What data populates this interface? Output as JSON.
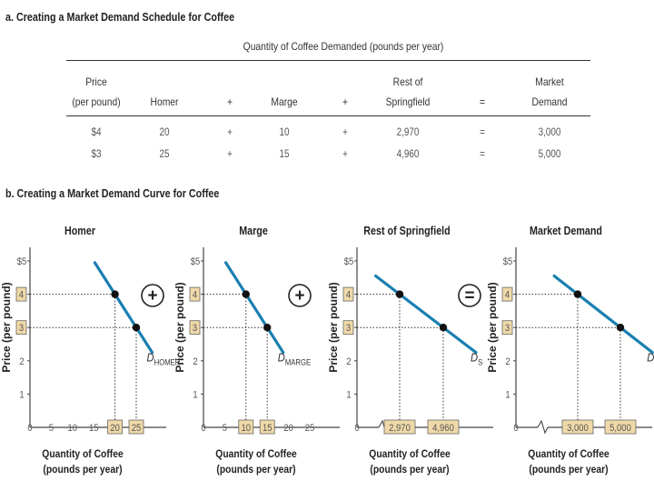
{
  "section_a": {
    "title": "a. Creating a Market Demand Schedule for Coffee",
    "table_caption": "Quantity of Coffee Demanded (pounds per year)",
    "header_top": {
      "price": "Price",
      "rest": "Rest of",
      "market": "Market"
    },
    "header_bottom": {
      "price": "(per pound)",
      "homer": "Homer",
      "plus": "+",
      "marge": "Marge",
      "rest": "Springfield",
      "equals": "=",
      "market": "Demand"
    },
    "rows": [
      {
        "price": "$4",
        "homer": "20",
        "plus": "+",
        "marge": "10",
        "rest": "2,970",
        "equals": "=",
        "market": "3,000"
      },
      {
        "price": "$3",
        "homer": "25",
        "plus": "+",
        "marge": "15",
        "rest": "4,960",
        "equals": "=",
        "market": "5,000"
      }
    ]
  },
  "section_b": {
    "title": "b. Creating a Market Demand Curve for Coffee",
    "y_axis_label": "Price (per pound)",
    "x_axis_label_line1": "Quantity of Coffee",
    "x_axis_label_line2": "(pounds per year)",
    "operators": [
      "+",
      "+",
      "="
    ]
  },
  "colors": {
    "curve": "#1a7fb0",
    "highlight": "#f0d9a8",
    "point": "#111111",
    "guide": "#333333"
  },
  "chart_data": [
    {
      "type": "line",
      "title": "Homer",
      "series": [
        {
          "name": "D_HOMER",
          "x": [
            20,
            25
          ],
          "y": [
            4,
            3
          ]
        }
      ],
      "curve_label": "D",
      "curve_subscript": "HOMER",
      "xlim": [
        0,
        30
      ],
      "ylim": [
        0,
        5
      ],
      "x_ticks": [
        "0",
        "5",
        "10",
        "15",
        "20",
        "25"
      ],
      "x_highlight": [
        "20",
        "25"
      ],
      "y_ticks": [
        "$5",
        "4",
        "3",
        "2",
        "1"
      ],
      "y_highlight": [
        "4",
        "3"
      ],
      "xlabel": "Quantity of Coffee (pounds per year)",
      "ylabel": "Price (per pound)"
    },
    {
      "type": "line",
      "title": "Marge",
      "series": [
        {
          "name": "D_MARGE",
          "x": [
            10,
            15
          ],
          "y": [
            4,
            3
          ]
        }
      ],
      "curve_label": "D",
      "curve_subscript": "MARGE",
      "xlim": [
        0,
        30
      ],
      "ylim": [
        0,
        5
      ],
      "x_ticks": [
        "0",
        "5",
        "10",
        "15",
        "20",
        "25"
      ],
      "x_highlight": [
        "10",
        "15"
      ],
      "y_ticks": [
        "$5",
        "4",
        "3",
        "2",
        "1"
      ],
      "y_highlight": [
        "4",
        "3"
      ],
      "xlabel": "Quantity of Coffee (pounds per year)",
      "ylabel": "Price (per pound)"
    },
    {
      "type": "line",
      "title": "Rest of Springfield",
      "series": [
        {
          "name": "D_S",
          "x": [
            2970,
            4960
          ],
          "y": [
            4,
            3
          ]
        }
      ],
      "curve_label": "D",
      "curve_subscript": "S",
      "ylim": [
        0,
        5
      ],
      "axis_break": true,
      "x_ticks": [
        "0",
        "2,970",
        "4,960"
      ],
      "x_highlight": [
        "2,970",
        "4,960"
      ],
      "y_ticks": [
        "$5",
        "4",
        "3",
        "2",
        "1"
      ],
      "y_highlight": [
        "4",
        "3"
      ],
      "xlabel": "Quantity of Coffee (pounds per year)",
      "ylabel": "Price (per pound)"
    },
    {
      "type": "line",
      "title": "Market Demand",
      "series": [
        {
          "name": "D_M",
          "x": [
            3000,
            5000
          ],
          "y": [
            4,
            3
          ]
        }
      ],
      "curve_label": "D",
      "curve_subscript": "M",
      "ylim": [
        0,
        5
      ],
      "axis_break": true,
      "x_ticks": [
        "0",
        "3,000",
        "5,000"
      ],
      "x_highlight": [
        "3,000",
        "5,000"
      ],
      "y_ticks": [
        "$5",
        "4",
        "3",
        "2",
        "1"
      ],
      "y_highlight": [
        "4",
        "3"
      ],
      "xlabel": "Quantity of Coffee (pounds per year)",
      "ylabel": "Price (per pound)"
    }
  ]
}
